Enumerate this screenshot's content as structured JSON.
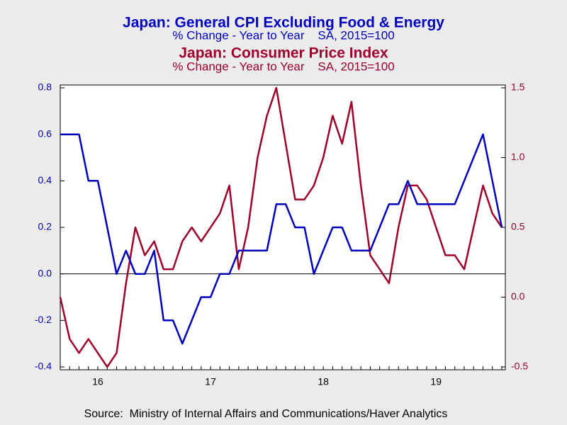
{
  "chart_data": {
    "type": "line",
    "title": "Japan: General CPI Excluding Food & Energy",
    "subtitle": "% Change - Year to Year    SA, 2015=100",
    "title2": "Japan: Consumer Price Index",
    "subtitle2": "% Change - Year to Year    SA, 2015=100",
    "source": "Source:  Ministry of Internal Affairs and Communications/Haver Analytics",
    "categories": [
      null,
      null,
      null,
      null,
      "16",
      null,
      null,
      null,
      null,
      null,
      null,
      null,
      null,
      null,
      null,
      null,
      "17",
      null,
      null,
      null,
      null,
      null,
      null,
      null,
      null,
      null,
      null,
      null,
      "18",
      null,
      null,
      null,
      null,
      null,
      null,
      null,
      null,
      null,
      null,
      null,
      "19",
      null,
      null,
      null,
      null,
      null,
      null,
      null
    ],
    "series": [
      {
        "name": "Japan: General CPI Excluding Food & Energy",
        "color": "#0000c0",
        "axis": "y",
        "values": [
          0.6,
          0.6,
          0.6,
          0.4,
          0.4,
          0.2,
          0.0,
          0.1,
          0.0,
          0.0,
          0.1,
          -0.2,
          -0.2,
          -0.3,
          -0.2,
          -0.1,
          -0.1,
          0.0,
          0.0,
          0.1,
          0.1,
          0.1,
          0.1,
          0.3,
          0.3,
          0.2,
          0.2,
          0.0,
          0.1,
          0.2,
          0.2,
          0.1,
          0.1,
          0.1,
          0.2,
          0.3,
          0.3,
          0.4,
          0.3,
          0.3,
          0.3,
          0.3,
          0.3,
          0.4,
          0.5,
          0.6,
          0.4,
          0.2
        ]
      },
      {
        "name": "Japan: Consumer Price Index",
        "color": "#a0002a",
        "axis": "y2",
        "values": [
          0.0,
          -0.3,
          -0.4,
          -0.3,
          -0.4,
          -0.5,
          -0.4,
          0.1,
          0.5,
          0.3,
          0.4,
          0.2,
          0.2,
          0.4,
          0.5,
          0.4,
          0.5,
          0.6,
          0.8,
          0.2,
          0.5,
          1.0,
          1.3,
          1.5,
          1.1,
          0.7,
          0.7,
          0.8,
          1.0,
          1.3,
          1.1,
          1.4,
          0.8,
          0.3,
          0.2,
          0.1,
          0.5,
          0.8,
          0.8,
          0.7,
          0.5,
          0.3,
          0.3,
          0.2,
          0.5,
          0.8,
          0.6,
          0.5
        ]
      }
    ],
    "ylim": [
      -0.4,
      0.8
    ],
    "yticks": [
      -0.4,
      -0.2,
      {
        "value": 0,
        "label": "0.0"
      },
      0.2,
      0.4,
      0.6,
      0.8
    ],
    "y2lim": [
      -0.5,
      1.5
    ],
    "y2ticks": [
      -0.5,
      {
        "value": 0,
        "label": "0.0"
      },
      0.5,
      {
        "value": 1,
        "label": "1.0"
      },
      1.5
    ],
    "zero_line": true
  }
}
